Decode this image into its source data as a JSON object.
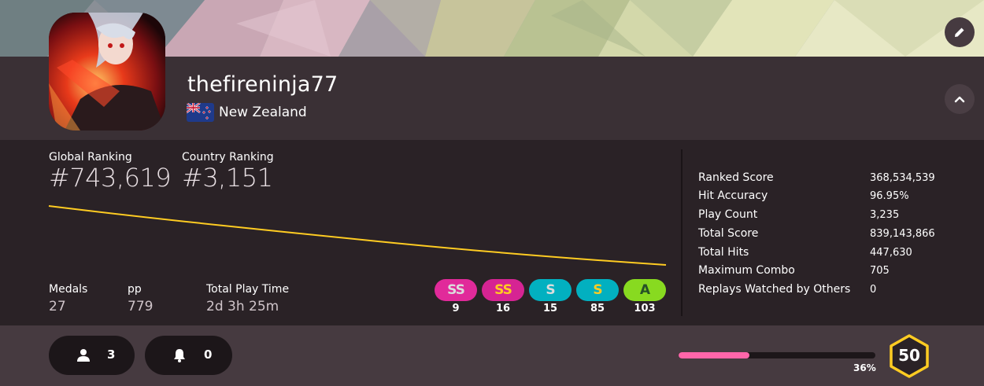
{
  "profile": {
    "username": "thefireninja77",
    "country": "New Zealand"
  },
  "ranking": {
    "global_label": "Global Ranking",
    "global_value": "#743,619",
    "country_label": "Country Ranking",
    "country_value": "#3,151"
  },
  "misc": {
    "medals_label": "Medals",
    "medals_value": "27",
    "pp_label": "pp",
    "pp_value": "779",
    "playtime_label": "Total Play Time",
    "playtime_value": "2d 3h 25m"
  },
  "grades": [
    {
      "grade": "SS",
      "count": "9",
      "color": "#e12a9a",
      "text_color": "#dcdcdc"
    },
    {
      "grade": "SS",
      "count": "16",
      "color": "#d62493",
      "text_color": "#ffcc22"
    },
    {
      "grade": "S",
      "count": "15",
      "color": "#02b0c0",
      "text_color": "#dcdcdc"
    },
    {
      "grade": "S",
      "count": "85",
      "color": "#02b0c0",
      "text_color": "#ffcc22"
    },
    {
      "grade": "A",
      "count": "103",
      "color": "#88da20",
      "text_color": "#275227"
    }
  ],
  "stats": [
    {
      "label": "Ranked Score",
      "value": "368,534,539"
    },
    {
      "label": "Hit Accuracy",
      "value": "96.95%"
    },
    {
      "label": "Play Count",
      "value": "3,235"
    },
    {
      "label": "Total Score",
      "value": "839,143,866"
    },
    {
      "label": "Total Hits",
      "value": "447,630"
    },
    {
      "label": "Maximum Combo",
      "value": "705"
    },
    {
      "label": "Replays Watched by Others",
      "value": "0"
    }
  ],
  "social": {
    "followers": "3",
    "notifications": "0"
  },
  "level": {
    "value": "50",
    "progress_text": "36%",
    "progress": 0.36
  },
  "colors": {
    "accent_pink": "#ff66aa",
    "graph_line": "#ffcc22",
    "level_ring": "#ffcc22"
  },
  "icons": {
    "edit": "pencil-icon",
    "collapse": "chevron-up-icon",
    "followers": "user-icon",
    "notifications": "bell-icon"
  }
}
